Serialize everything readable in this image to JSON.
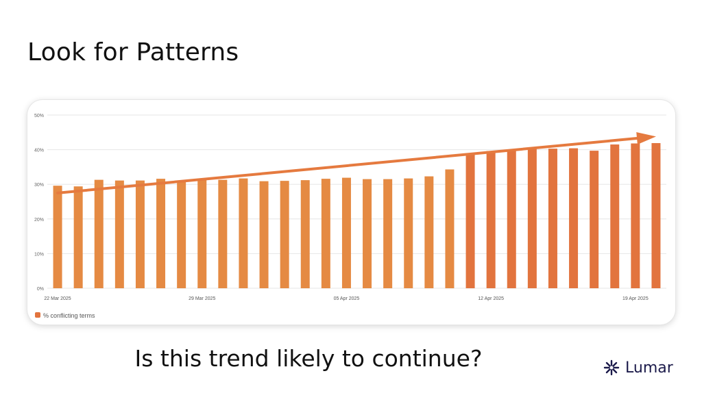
{
  "slide": {
    "title": "Look for Patterns",
    "question": "Is this trend likely to continue?",
    "logo_text": "Lumar",
    "logo_icon": "star-burst-icon"
  },
  "colors": {
    "bar": "#e58a43",
    "bar_late": "#e2743e",
    "arrow": "#e57a3f",
    "grid": "#e6e6e6",
    "text": "#111111",
    "logo": "#1b1a4a"
  },
  "chart_data": {
    "type": "bar",
    "ylim": [
      0,
      50
    ],
    "y_ticks": [
      "0%",
      "10%",
      "20%",
      "30%",
      "40%",
      "50%"
    ],
    "x_tick_labels": [
      "22 Mar 2025",
      "29 Mar 2025",
      "05 Apr 2025",
      "12 Apr 2025",
      "19 Apr 2025"
    ],
    "legend": "% conflicting terms",
    "legend_position": "bottom-left",
    "grid": true,
    "categories": [
      "22 Mar 2025",
      "23 Mar 2025",
      "24 Mar 2025",
      "25 Mar 2025",
      "26 Mar 2025",
      "27 Mar 2025",
      "28 Mar 2025",
      "29 Mar 2025",
      "30 Mar 2025",
      "31 Mar 2025",
      "01 Apr 2025",
      "02 Apr 2025",
      "03 Apr 2025",
      "04 Apr 2025",
      "05 Apr 2025",
      "06 Apr 2025",
      "07 Apr 2025",
      "08 Apr 2025",
      "09 Apr 2025",
      "10 Apr 2025",
      "11 Apr 2025",
      "12 Apr 2025",
      "13 Apr 2025",
      "14 Apr 2025",
      "15 Apr 2025",
      "16 Apr 2025",
      "17 Apr 2025",
      "18 Apr 2025",
      "19 Apr 2025",
      "20 Apr 2025"
    ],
    "series": [
      {
        "name": "% conflicting terms",
        "values": [
          29.6,
          29.4,
          31.3,
          31.1,
          31.1,
          31.6,
          31.0,
          31.6,
          31.3,
          31.7,
          30.9,
          31.0,
          31.2,
          31.6,
          31.9,
          31.5,
          31.5,
          31.7,
          32.3,
          34.3,
          38.6,
          39.6,
          40.0,
          40.3,
          40.3,
          40.4,
          39.7,
          41.5,
          41.8,
          41.9
        ]
      }
    ],
    "annotation": {
      "type": "trend-arrow",
      "from": [
        "22 Mar 2025",
        27.5
      ],
      "to": [
        "20 Apr 2025",
        43.8
      ]
    }
  }
}
